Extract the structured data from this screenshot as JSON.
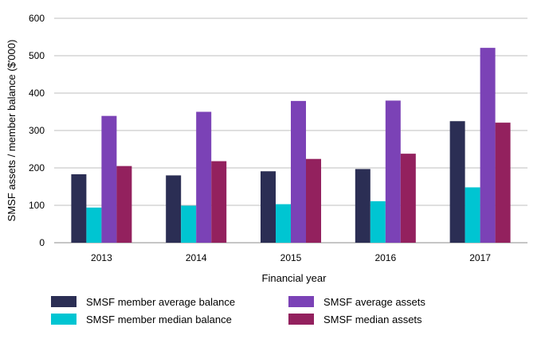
{
  "chart_data": {
    "type": "bar",
    "title": "",
    "xlabel": "Financial year",
    "ylabel": "SMSF assets / member balance ($'000)",
    "ylim": [
      0,
      600
    ],
    "yticks": [
      0,
      100,
      200,
      300,
      400,
      500,
      600
    ],
    "grid": "horizontal",
    "legend_position": "bottom",
    "categories": [
      "2013",
      "2014",
      "2015",
      "2016",
      "2017"
    ],
    "series": [
      {
        "name": "SMSF member average balance",
        "color": "#2b2e54",
        "values": [
          183,
          180,
          191,
          197,
          325
        ]
      },
      {
        "name": "SMSF member median balance",
        "color": "#00c5d2",
        "values": [
          94,
          99,
          103,
          111,
          148
        ]
      },
      {
        "name": "SMSF average assets",
        "color": "#7b42b6",
        "values": [
          339,
          350,
          379,
          380,
          521
        ]
      },
      {
        "name": "SMSF median assets",
        "color": "#93215e",
        "values": [
          205,
          218,
          224,
          238,
          321
        ]
      }
    ]
  }
}
